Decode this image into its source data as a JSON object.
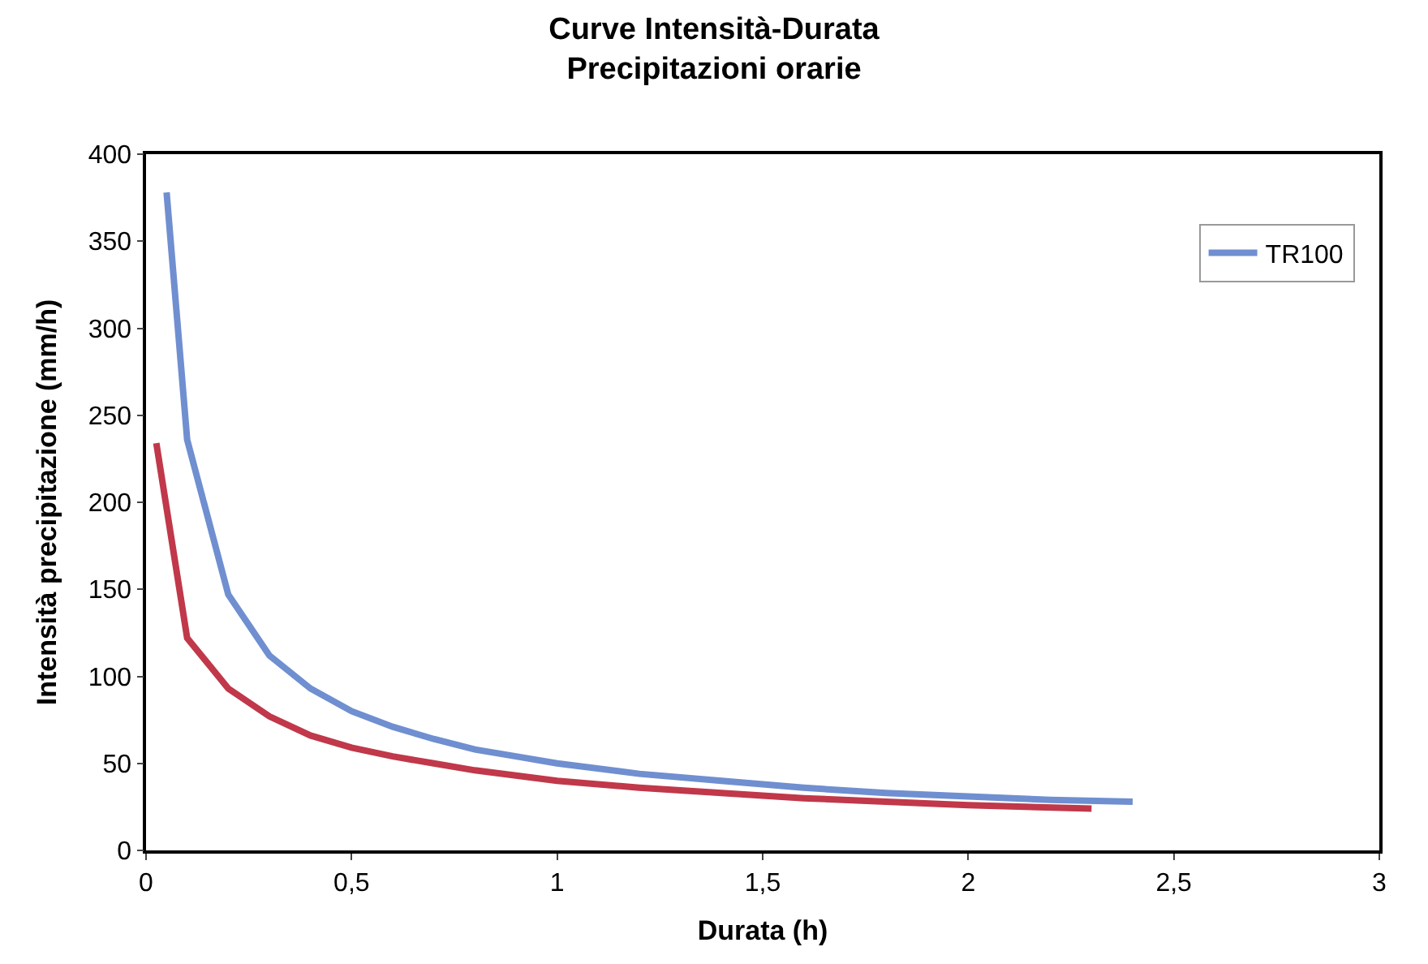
{
  "chart_data": {
    "type": "line",
    "title": "Curve Intensità-Durata",
    "subtitle": "Precipitazioni orarie",
    "xlabel": "Durata (h)",
    "ylabel": "Intensità precipitazione (mm/h)",
    "xlim": [
      0,
      3
    ],
    "xticks": [
      0,
      {
        "value": 0.5,
        "label": "0,5"
      },
      1,
      {
        "value": 1.5,
        "label": "1,5"
      },
      2,
      {
        "value": 2.5,
        "label": "2,5"
      },
      3
    ],
    "ylim": [
      0,
      400
    ],
    "yticks": [
      0,
      50,
      100,
      150,
      200,
      250,
      300,
      350,
      400
    ],
    "legend": "top right",
    "marker": "none",
    "line_style": "solid",
    "series": [
      {
        "name": "TR100",
        "color": "#6f8fd0",
        "x": [
          0.05,
          0.1,
          0.2,
          0.3,
          0.4,
          0.5,
          0.6,
          0.7,
          0.8,
          0.9,
          1.0,
          1.2,
          1.4,
          1.6,
          1.8,
          2.0,
          2.2,
          2.4
        ],
        "values": [
          378,
          236,
          147,
          112,
          93,
          80,
          71,
          64,
          58,
          54,
          50,
          44,
          40,
          36,
          33,
          31,
          29,
          28
        ]
      },
      {
        "color": "#c0384a",
        "x": [
          0.025,
          0.1,
          0.2,
          0.3,
          0.4,
          0.5,
          0.6,
          0.7,
          0.8,
          0.9,
          1.0,
          1.2,
          1.4,
          1.6,
          1.8,
          2.0,
          2.3
        ],
        "values": [
          234,
          122,
          93,
          77,
          66,
          59,
          54,
          50,
          46,
          43,
          40,
          36,
          33,
          30,
          28,
          26,
          24
        ]
      }
    ]
  }
}
